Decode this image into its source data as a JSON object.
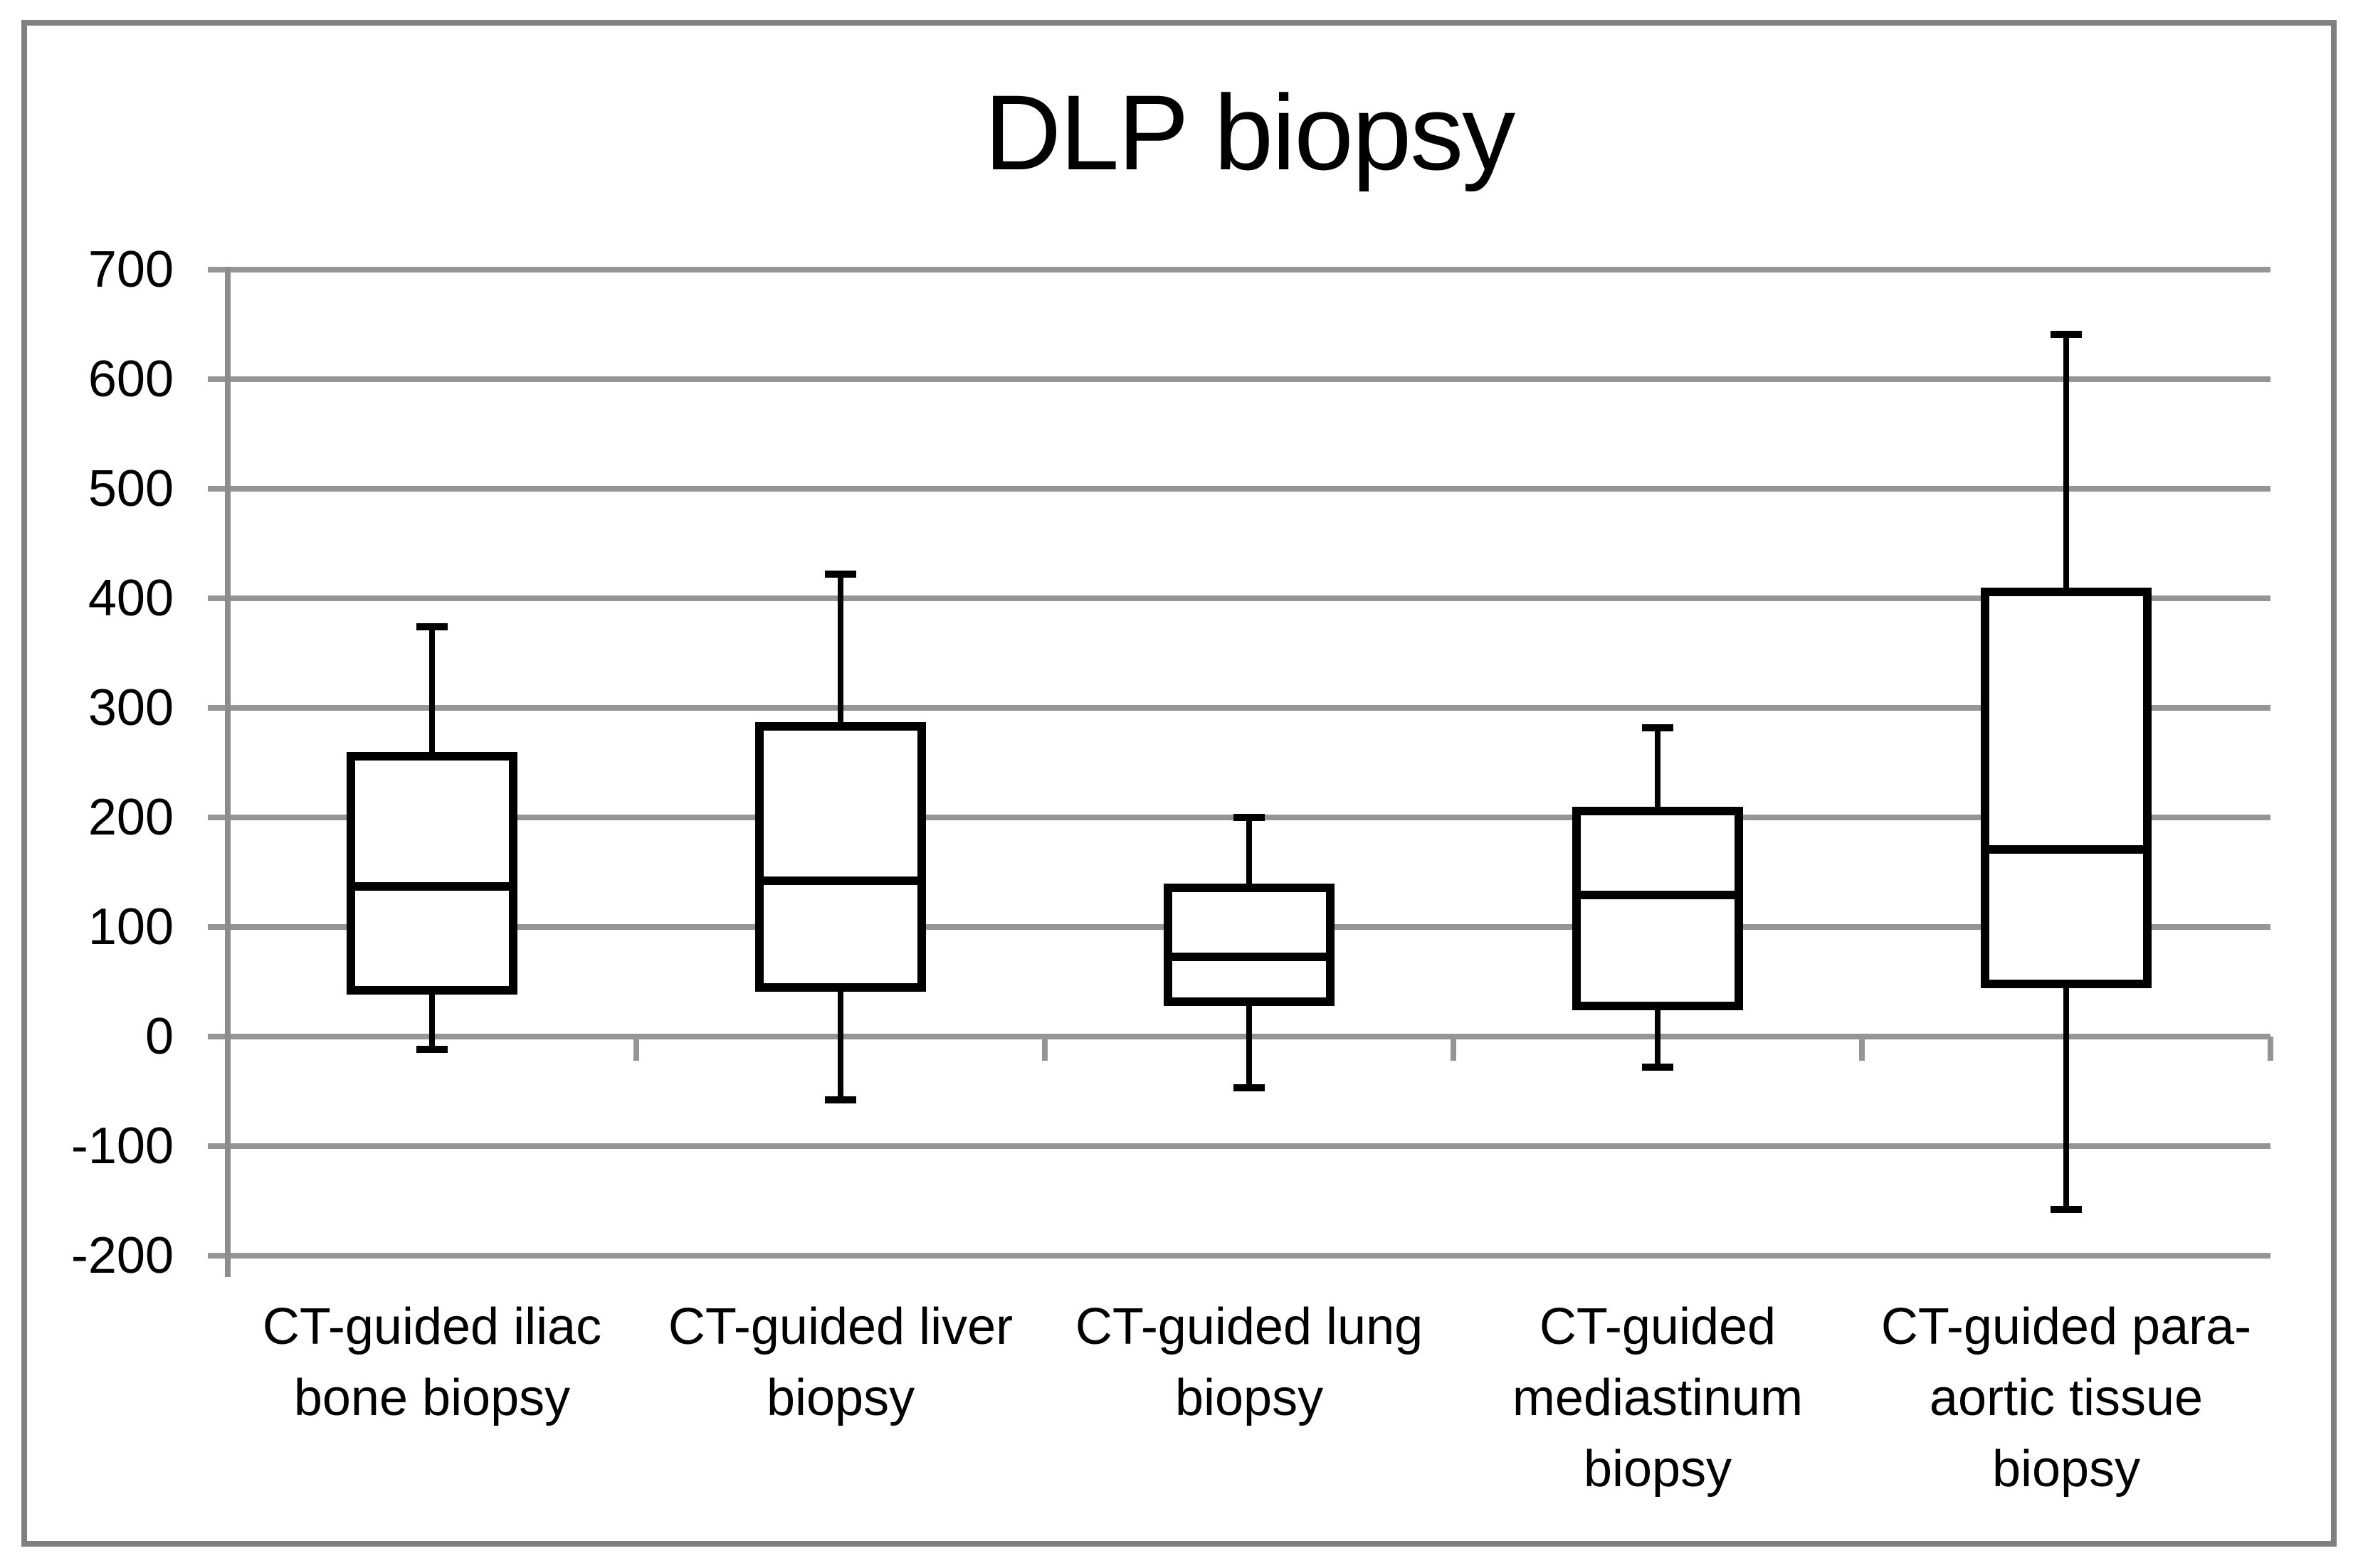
{
  "title": "DLP biopsy",
  "chart_data": {
    "type": "boxplot",
    "title": "DLP biopsy",
    "xlabel": "",
    "ylabel": "",
    "ylim": [
      -200,
      700
    ],
    "ytick_interval": 100,
    "yticks": [
      700,
      600,
      500,
      400,
      300,
      200,
      100,
      0,
      -100,
      -200
    ],
    "grid": true,
    "legend": "none",
    "categories": [
      "CT-guided iliac bone biopsy",
      "CT-guided liver biopsy",
      "CT-guided lung biopsy",
      "CT-guided mediastinum biopsy",
      "CT-guided para-aortic tissue biopsy"
    ],
    "category_label_lines": [
      [
        "CT-guided iliac",
        "bone biopsy"
      ],
      [
        "CT-guided liver",
        "biopsy"
      ],
      [
        "CT-guided lung",
        "biopsy"
      ],
      [
        "CT-guided",
        "mediastinum",
        "biopsy"
      ],
      [
        "CT-guided para-",
        "aortic tissue",
        "biopsy"
      ]
    ],
    "series": [
      {
        "name": "CT-guided iliac bone biopsy",
        "whisker_low": -12,
        "q1": 42,
        "median": 137,
        "q3": 256,
        "whisker_high": 374
      },
      {
        "name": "CT-guided liver biopsy",
        "whisker_low": -58,
        "q1": 45,
        "median": 142,
        "q3": 283,
        "whisker_high": 422
      },
      {
        "name": "CT-guided lung biopsy",
        "whisker_low": -47,
        "q1": 32,
        "median": 73,
        "q3": 136,
        "whisker_high": 200
      },
      {
        "name": "CT-guided mediastinum biopsy",
        "whisker_low": -28,
        "q1": 28,
        "median": 129,
        "q3": 206,
        "whisker_high": 282
      },
      {
        "name": "CT-guided para-aortic tissue biopsy",
        "whisker_low": -158,
        "q1": 48,
        "median": 171,
        "q3": 406,
        "whisker_high": 641
      }
    ],
    "colors": {
      "box_stroke": "#000000",
      "gridline": "#959595",
      "axis": "#8c8c8c",
      "frame": "#808080",
      "text": "#000000",
      "background": "#ffffff"
    }
  }
}
